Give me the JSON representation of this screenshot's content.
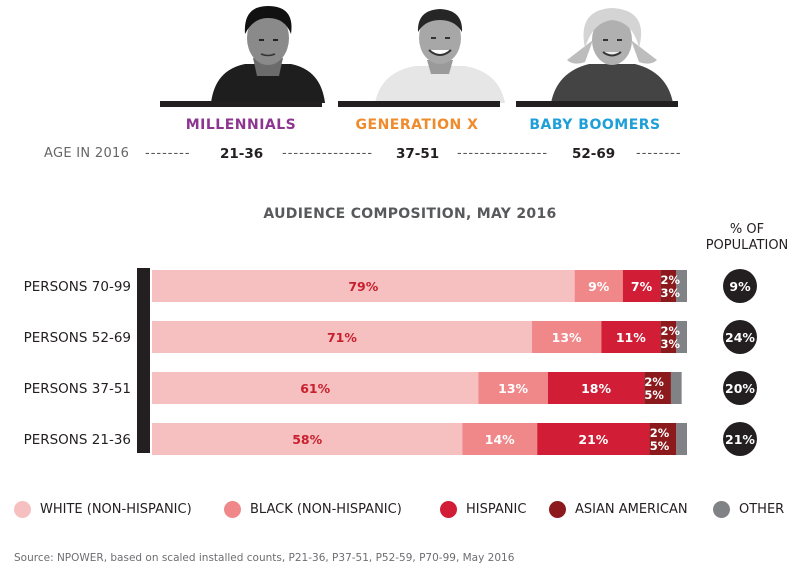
{
  "generations": [
    {
      "name": "MILLENNIALS",
      "age_range": "21-36",
      "color": "#8e3591",
      "photo": "young-man-photo"
    },
    {
      "name": "GENERATION X",
      "age_range": "37-51",
      "color": "#ef8b2c",
      "photo": "smiling-man-photo"
    },
    {
      "name": "BABY BOOMERS",
      "age_range": "52-69",
      "color": "#1f9fd8",
      "photo": "older-woman-photo"
    }
  ],
  "age_row": {
    "title": "AGE IN 2016",
    "dash1": "--------",
    "dash2": "----------------",
    "dash3": "----------------",
    "dash4": "--------"
  },
  "chart_title": "AUDIENCE COMPOSITION, MAY 2016",
  "pop_title_line1": "% OF",
  "pop_title_line2": "POPULATION",
  "chart_data": {
    "type": "bar",
    "orientation": "horizontal",
    "stacked": true,
    "normalized_percent": true,
    "title": "AUDIENCE COMPOSITION, MAY 2016",
    "categories": [
      "PERSONS 70-99",
      "PERSONS 52-69",
      "PERSONS 37-51",
      "PERSONS 21-36"
    ],
    "series": [
      {
        "name": "WHITE (NON-HISPANIC)",
        "color": "#f6c0c0",
        "label_color": "#c8202f",
        "values": [
          79,
          71,
          61,
          58
        ]
      },
      {
        "name": "BLACK (NON-HISPANIC)",
        "color": "#f0888a",
        "label_color": "#ffffff",
        "values": [
          9,
          13,
          13,
          14
        ]
      },
      {
        "name": "HISPANIC",
        "color": "#d11d35",
        "label_color": "#ffffff",
        "values": [
          7,
          11,
          18,
          21
        ]
      },
      {
        "name": "ASIAN AMERICAN",
        "color": "#8c1a1d",
        "label_color": "#ffffff",
        "values": [
          3,
          3,
          5,
          5
        ]
      },
      {
        "name": "OTHER",
        "color": "#808285",
        "label_color": "#ffffff",
        "values": [
          2,
          2,
          2,
          2
        ]
      }
    ],
    "percent_of_population": [
      "9%",
      "24%",
      "20%",
      "21%"
    ],
    "legend_position": "bottom"
  },
  "legend": [
    {
      "label": "WHITE (NON-HISPANIC)",
      "color": "#f6c0c0"
    },
    {
      "label": "BLACK (NON-HISPANIC)",
      "color": "#f0888a"
    },
    {
      "label": "HISPANIC",
      "color": "#d11d35"
    },
    {
      "label": "ASIAN AMERICAN",
      "color": "#8c1a1d"
    },
    {
      "label": "OTHER",
      "color": "#808285"
    }
  ],
  "source": "Source: NPOWER, based on scaled installed counts, P21-36, P37-51, P52-59, P70-99, May 2016"
}
